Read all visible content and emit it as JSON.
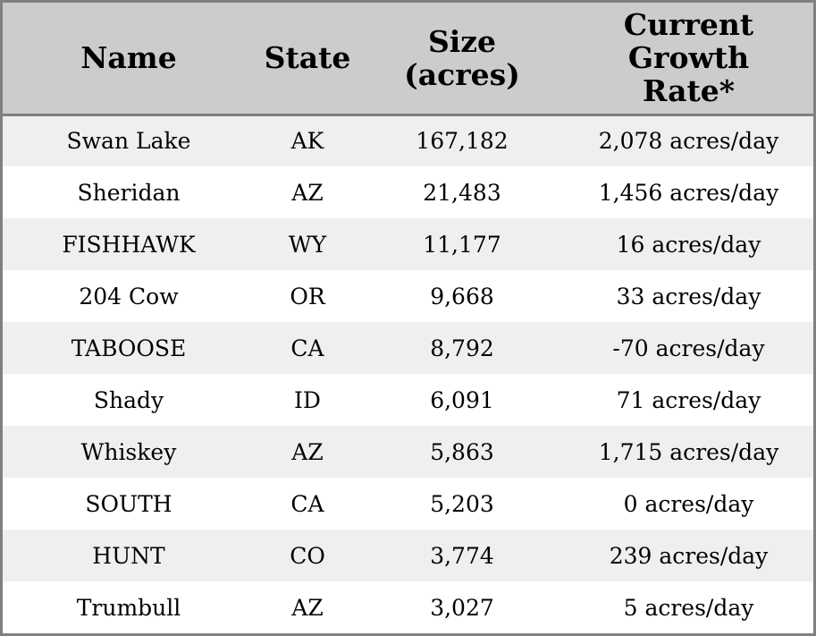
{
  "chart_data": {
    "type": "table",
    "columns": [
      [
        "Name"
      ],
      [
        "State"
      ],
      [
        "Size",
        "(acres)"
      ],
      [
        "Current",
        "Growth",
        "Rate*"
      ]
    ],
    "rows": [
      [
        "Swan Lake",
        "AK",
        "167,182",
        "2,078 acres/day"
      ],
      [
        "Sheridan",
        "AZ",
        "21,483",
        "1,456 acres/day"
      ],
      [
        "FISHHAWK",
        "WY",
        "11,177",
        "16 acres/day"
      ],
      [
        "204 Cow",
        "OR",
        "9,668",
        "33 acres/day"
      ],
      [
        "TABOOSE",
        "CA",
        "8,792",
        "-70 acres/day"
      ],
      [
        "Shady",
        "ID",
        "6,091",
        "71 acres/day"
      ],
      [
        "Whiskey",
        "AZ",
        "5,863",
        "1,715 acres/day"
      ],
      [
        "SOUTH",
        "CA",
        "5,203",
        "0 acres/day"
      ],
      [
        "HUNT",
        "CO",
        "3,774",
        "239 acres/day"
      ],
      [
        "Trumbull",
        "AZ",
        "3,027",
        "5 acres/day"
      ]
    ]
  },
  "colors": {
    "header_bg": "#cccccc",
    "stripe_bg": "#efefef",
    "row_bg": "#ffffff",
    "border": "#808080",
    "text": "#000000"
  }
}
